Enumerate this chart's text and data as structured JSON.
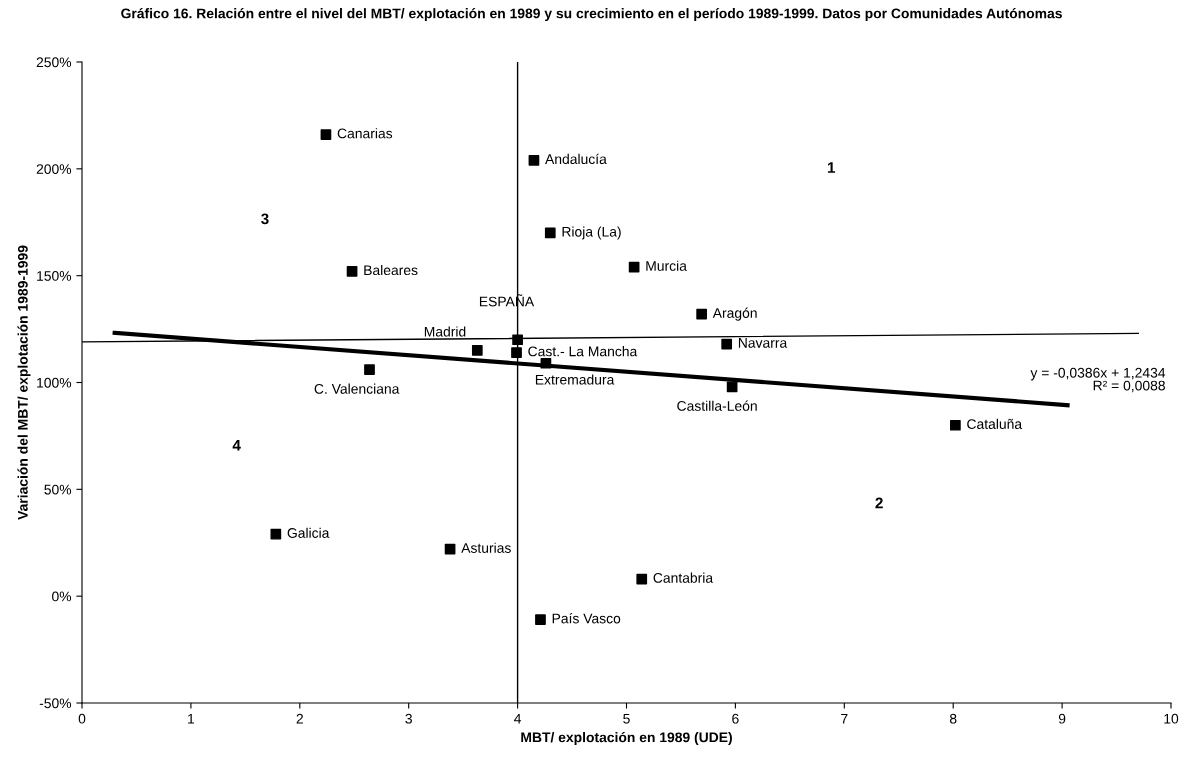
{
  "chart_data": {
    "type": "scatter",
    "title": "Gráfico 16. Relación entre el nivel del MBT/ explotación en 1989 y su crecimiento en el período 1989-1999. Datos por Comunidades Autónomas",
    "xlabel": "MBT/ explotación en 1989 (UDE)",
    "ylabel": "Variación del MBT/ explotación 1989-1999",
    "xlim": [
      0,
      10
    ],
    "xticks": [
      0,
      1,
      2,
      3,
      4,
      5,
      6,
      7,
      8,
      9,
      10
    ],
    "ylim": [
      -50,
      250
    ],
    "yticks": [
      {
        "value": -50,
        "label": "-50%"
      },
      {
        "value": 0,
        "label": "0%"
      },
      {
        "value": 50,
        "label": "50%"
      },
      {
        "value": 100,
        "label": "100%"
      },
      {
        "value": 150,
        "label": "150%"
      },
      {
        "value": 200,
        "label": "200%"
      },
      {
        "value": 250,
        "label": "250%"
      }
    ],
    "grid": false,
    "legend": false,
    "series": [
      {
        "marker": "square",
        "color": "#000000",
        "x": [
          2.24,
          4.15,
          4.3,
          2.48,
          5.07,
          5.69,
          3.63,
          4.0,
          3.99,
          5.92,
          4.26,
          2.64,
          5.97,
          8.02,
          1.78,
          3.38,
          5.14,
          4.21
        ],
        "values": [
          216,
          204,
          170,
          152,
          154,
          132,
          115,
          120,
          114,
          118,
          109,
          106,
          98,
          80,
          29,
          22,
          8,
          -11
        ]
      },
      {
        "type": "line",
        "color": "#000000",
        "x": [
          0.3,
          9.05
        ],
        "values": [
          123.2,
          89.4
        ]
      },
      {
        "type": "line",
        "color": "#000000",
        "x": [
          0,
          9.7
        ],
        "values": [
          119,
          123
        ]
      }
    ],
    "ref_lines": [
      {
        "axis": "x",
        "value": 4,
        "color": "#000000"
      }
    ],
    "annotations": [
      {
        "text": "Canarias",
        "x": 2.24,
        "y": 216
      },
      {
        "text": "Andalucía",
        "x": 4.15,
        "y": 204
      },
      {
        "text": "Rioja (La)",
        "x": 4.3,
        "y": 170
      },
      {
        "text": "Baleares",
        "x": 2.48,
        "y": 152
      },
      {
        "text": "Murcia",
        "x": 5.07,
        "y": 154
      },
      {
        "text": "Aragón",
        "x": 5.69,
        "y": 132
      },
      {
        "text": "Madrid",
        "x": 3.63,
        "y": 115
      },
      {
        "text": "ESPAÑA",
        "x": 4.0,
        "y": 120
      },
      {
        "text": "Cast.- La Mancha",
        "x": 3.99,
        "y": 114
      },
      {
        "text": "Navarra",
        "x": 5.92,
        "y": 118
      },
      {
        "text": "Extremadura",
        "x": 4.26,
        "y": 109
      },
      {
        "text": "C. Valenciana",
        "x": 2.64,
        "y": 106
      },
      {
        "text": "Castilla-León",
        "x": 5.97,
        "y": 98
      },
      {
        "text": "Cataluña",
        "x": 8.02,
        "y": 80
      },
      {
        "text": "Galicia",
        "x": 1.78,
        "y": 29
      },
      {
        "text": "Asturias",
        "x": 3.38,
        "y": 22
      },
      {
        "text": "Cantabria",
        "x": 5.14,
        "y": 8
      },
      {
        "text": "País Vasco",
        "x": 4.21,
        "y": -11
      },
      "1",
      "2",
      "3",
      "4",
      "y = -0,0386x + 1,2434",
      "R² = 0,0088"
    ]
  }
}
